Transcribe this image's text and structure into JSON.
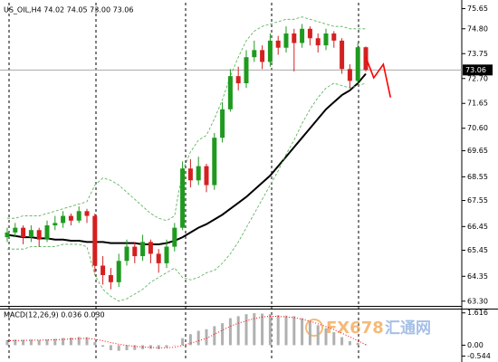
{
  "chart_data": [
    {
      "type": "candlestick",
      "title": "US_OIL,H4  74.02 74.05 73.00 73.06",
      "up_color": "#1f9a1f",
      "down_color": "#d42020",
      "open": [
        66.0,
        66.2,
        66.4,
        66.0,
        66.3,
        65.9,
        66.5,
        66.6,
        66.9,
        66.7,
        67.1,
        66.9,
        64.8,
        64.4,
        64.1,
        65.0,
        65.6,
        65.2,
        65.8,
        65.3,
        64.9,
        65.6,
        66.4,
        68.9,
        68.4,
        69.0,
        68.2,
        70.2,
        71.4,
        72.8,
        72.5,
        73.6,
        73.9,
        73.4,
        74.3,
        74.0,
        74.6,
        74.2,
        74.8,
        74.4,
        74.1,
        74.6,
        74.3,
        73.1,
        72.6,
        74.02
      ],
      "high": [
        66.4,
        66.6,
        66.5,
        66.5,
        66.4,
        66.7,
        66.9,
        67.1,
        67.0,
        67.3,
        67.2,
        67.0,
        65.2,
        64.7,
        65.3,
        65.9,
        65.8,
        66.1,
        65.9,
        65.5,
        65.9,
        66.6,
        69.2,
        69.3,
        69.4,
        69.1,
        70.4,
        71.7,
        73.1,
        73.2,
        73.9,
        74.3,
        74.1,
        74.6,
        74.5,
        74.9,
        74.8,
        75.0,
        74.9,
        74.6,
        74.8,
        74.7,
        74.4,
        73.3,
        74.2,
        74.05
      ],
      "low": [
        65.8,
        66.0,
        65.7,
        65.8,
        65.6,
        65.8,
        66.3,
        66.4,
        66.5,
        66.6,
        66.6,
        64.5,
        64.0,
        63.8,
        63.9,
        64.8,
        64.9,
        65.0,
        64.9,
        64.5,
        64.7,
        65.4,
        66.3,
        68.1,
        68.2,
        67.9,
        68.0,
        70.0,
        71.3,
        72.2,
        72.3,
        73.4,
        73.1,
        73.2,
        73.7,
        73.8,
        73.0,
        74.0,
        74.1,
        73.8,
        73.9,
        74.0,
        72.9,
        72.3,
        72.5,
        73.0
      ],
      "close": [
        66.2,
        66.4,
        66.0,
        66.3,
        65.9,
        66.5,
        66.6,
        66.9,
        66.7,
        67.1,
        66.9,
        64.8,
        64.4,
        64.1,
        65.0,
        65.6,
        65.2,
        65.8,
        65.3,
        64.9,
        65.6,
        66.4,
        68.9,
        68.4,
        69.0,
        68.2,
        70.2,
        71.4,
        72.8,
        72.5,
        73.6,
        73.9,
        73.4,
        74.3,
        74.0,
        74.6,
        74.2,
        74.8,
        74.4,
        74.1,
        74.6,
        74.3,
        73.1,
        72.6,
        74.02,
        73.06
      ],
      "series": [
        {
          "color": "#000000",
          "style": "solid",
          "values": [
            66.1,
            66.05,
            66.0,
            66.0,
            65.95,
            65.95,
            65.9,
            65.9,
            65.85,
            65.85,
            65.8,
            65.8,
            65.8,
            65.75,
            65.75,
            65.75,
            65.75,
            65.7,
            65.7,
            65.7,
            65.75,
            65.85,
            66.0,
            66.2,
            66.4,
            66.55,
            66.75,
            66.95,
            67.2,
            67.45,
            67.7,
            68.0,
            68.3,
            68.6,
            69.0,
            69.4,
            69.8,
            70.2,
            70.6,
            71.0,
            71.4,
            71.7,
            72.0,
            72.2,
            72.5,
            72.9
          ]
        },
        {
          "color": "#4fae4f",
          "style": "dashed",
          "values": [
            66.8,
            66.8,
            66.9,
            66.9,
            66.9,
            67.0,
            67.1,
            67.2,
            67.3,
            67.4,
            67.5,
            68.2,
            68.5,
            68.4,
            68.2,
            67.9,
            67.6,
            67.3,
            67.0,
            66.8,
            66.7,
            66.9,
            68.8,
            69.6,
            70.1,
            70.3,
            71.0,
            71.8,
            72.8,
            73.6,
            74.3,
            74.7,
            74.9,
            75.0,
            75.1,
            75.2,
            75.2,
            75.3,
            75.2,
            75.1,
            75.0,
            74.9,
            74.9,
            74.8,
            74.8,
            74.8
          ]
        },
        {
          "color": "#4fae4f",
          "style": "dashed",
          "values": [
            65.5,
            65.5,
            65.5,
            65.6,
            65.6,
            65.6,
            65.6,
            65.7,
            65.7,
            65.7,
            65.6,
            64.4,
            63.8,
            63.5,
            63.3,
            63.4,
            63.6,
            63.8,
            64.1,
            64.3,
            64.5,
            64.7,
            64.3,
            64.2,
            64.3,
            64.5,
            64.6,
            64.9,
            65.3,
            65.8,
            66.4,
            67.0,
            67.6,
            68.2,
            68.8,
            69.5,
            70.1,
            70.8,
            71.4,
            71.9,
            72.3,
            72.5,
            72.4,
            72.3,
            72.4,
            72.5
          ]
        }
      ],
      "forecast": {
        "color": "#ff0000",
        "x": [
          45,
          46,
          47.2,
          48.1
        ],
        "values": [
          73.6,
          72.73,
          73.3,
          71.9
        ]
      },
      "ylim": [
        63.1,
        75.9
      ],
      "yticks": [
        75.65,
        {
          "value": 74.8,
          "label": "74.80"
        },
        73.75,
        {
          "value": 72.7,
          "label": "72.70"
        },
        71.65,
        {
          "value": 70.6,
          "label": "70.60"
        },
        69.65,
        68.55,
        67.55,
        66.45,
        65.45,
        64.35,
        {
          "value": 63.3,
          "label": "63.30"
        }
      ]
    },
    {
      "type": "bar",
      "title": "MACD(12,26,9) 0.036 0.030",
      "series": [
        {
          "color": "#b0b0b0",
          "values": [
            0.25,
            0.28,
            0.27,
            0.28,
            0.26,
            0.29,
            0.32,
            0.36,
            0.38,
            0.41,
            0.4,
            0.15,
            -0.08,
            -0.25,
            -0.28,
            -0.25,
            -0.24,
            -0.2,
            -0.18,
            -0.2,
            -0.12,
            0.02,
            0.35,
            0.55,
            0.72,
            0.8,
            0.95,
            1.1,
            1.35,
            1.45,
            1.55,
            1.6,
            1.58,
            1.55,
            1.5,
            1.48,
            1.45,
            1.35,
            1.2,
            1.0,
            0.85,
            0.65,
            0.4,
            0.2,
            0.12,
            0.036
          ]
        },
        {
          "color": "#ff0000",
          "style": "dotted",
          "values": [
            0.22,
            0.23,
            0.24,
            0.25,
            0.25,
            0.26,
            0.27,
            0.29,
            0.31,
            0.33,
            0.34,
            0.3,
            0.22,
            0.13,
            0.05,
            -0.01,
            -0.06,
            -0.09,
            -0.11,
            -0.13,
            -0.13,
            -0.1,
            -0.01,
            0.1,
            0.22,
            0.34,
            0.55,
            0.75,
            0.95,
            1.1,
            1.22,
            1.33,
            1.41,
            1.45,
            1.44,
            1.42,
            1.38,
            1.3,
            1.2,
            1.07,
            0.93,
            0.78,
            0.6,
            0.42,
            0.22,
            0.03
          ]
        }
      ],
      "ylim": [
        -0.66,
        1.74
      ],
      "yticks": [
        1.616,
        {
          "value": 0,
          "label": "0.00"
        },
        -0.544
      ]
    }
  ],
  "watermark": [
    "FX678",
    "汇通网"
  ]
}
